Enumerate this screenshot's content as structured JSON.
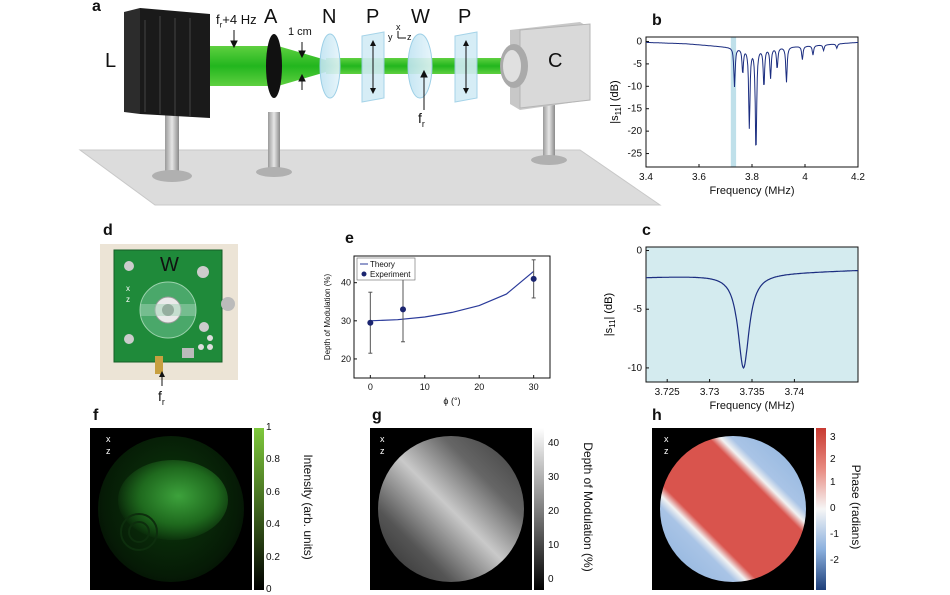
{
  "panels": {
    "a": "a",
    "b": "b",
    "c": "c",
    "d": "d",
    "e": "e",
    "f": "f",
    "g": "g",
    "h": "h"
  },
  "setup": {
    "labels": [
      "L",
      "A",
      "N",
      "P",
      "W",
      "P",
      "C"
    ],
    "freq_offset": "f",
    "freq_offset_sub": "r",
    "freq_offset_suffix": "+4 Hz",
    "beam_size": "1 cm",
    "drive_freq": "f",
    "drive_freq_sub": "r",
    "axis_x": "x",
    "axis_y": "y",
    "axis_z": "z"
  },
  "photo": {
    "label": "W",
    "drive_freq": "f",
    "drive_freq_sub": "r",
    "axis_x": "x",
    "axis_z": "z"
  },
  "maps": {
    "axis_x": "x",
    "axis_z": "z",
    "f_colorbar": {
      "label": "Intensity (arb. units)",
      "ticks": [
        "1",
        "0.8",
        "0.6",
        "0.4",
        "0.2",
        "0"
      ],
      "color": "#6fc030"
    },
    "g_colorbar": {
      "label": "Depth of Modulation (%)",
      "ticks": [
        "40",
        "30",
        "20",
        "10",
        "0"
      ]
    },
    "h_colorbar": {
      "label": "Phase (radians)",
      "ticks": [
        "3",
        "2",
        "1",
        "0",
        "-1",
        "-2"
      ]
    }
  },
  "chart_data": [
    {
      "id": "b",
      "type": "line",
      "xlabel": "Frequency (MHz)",
      "ylabel_main": "|s",
      "ylabel_sub": "11",
      "ylabel_end": "| (dB)",
      "xlim": [
        3.4,
        4.2
      ],
      "ylim": [
        -28,
        1
      ],
      "xticks": [
        "3.4",
        "3.6",
        "3.8",
        "4",
        "4.2"
      ],
      "yticks": [
        "0",
        "-5",
        "-10",
        "-15",
        "-20",
        "-25"
      ],
      "highlight_band": [
        3.72,
        3.74
      ],
      "baseline": [
        [
          3.4,
          -0.2
        ],
        [
          3.55,
          -0.5
        ],
        [
          3.7,
          -1.2
        ],
        [
          3.8,
          -1.5
        ],
        [
          4.0,
          -1.0
        ],
        [
          4.2,
          -0.2
        ]
      ],
      "resonances": [
        {
          "x": 3.734,
          "y": -10
        },
        {
          "x": 3.765,
          "y": -7
        },
        {
          "x": 3.79,
          "y": -19
        },
        {
          "x": 3.815,
          "y": -25
        },
        {
          "x": 3.845,
          "y": -10
        },
        {
          "x": 3.87,
          "y": -8
        },
        {
          "x": 3.895,
          "y": -6
        },
        {
          "x": 3.93,
          "y": -9
        },
        {
          "x": 3.99,
          "y": -4
        },
        {
          "x": 4.03,
          "y": -3
        },
        {
          "x": 4.07,
          "y": -2
        },
        {
          "x": 4.12,
          "y": -1.5
        }
      ]
    },
    {
      "id": "c",
      "type": "line",
      "xlabel": "Frequency (MHz)",
      "ylabel_main": "|s",
      "ylabel_sub": "11",
      "ylabel_end": "| (dB)",
      "xlim": [
        3.7225,
        3.7475
      ],
      "ylim": [
        -11.2,
        0.3
      ],
      "xticks": [
        "3.725",
        "3.73",
        "3.735",
        "3.74"
      ],
      "yticks": [
        "0",
        "-5",
        "-10"
      ],
      "baseline_db": -2,
      "dip": {
        "x": 3.734,
        "y": -10,
        "width": 0.0008
      }
    },
    {
      "id": "e",
      "type": "scatter",
      "xlabel": "ϕ (°)",
      "ylabel": "Depth of Modulation (%)",
      "xlim": [
        -3,
        33
      ],
      "ylim": [
        15,
        47
      ],
      "xticks": [
        "0",
        "10",
        "20",
        "30"
      ],
      "yticks": [
        "20",
        "30",
        "40"
      ],
      "legend": [
        "Theory",
        "Experiment"
      ],
      "experiment": [
        {
          "x": 0,
          "y": 29.5,
          "err": 8
        },
        {
          "x": 6,
          "y": 33,
          "err": 8.5
        },
        {
          "x": 30,
          "y": 41,
          "err": 5
        }
      ],
      "theory": [
        [
          0,
          30
        ],
        [
          5,
          30.3
        ],
        [
          10,
          31
        ],
        [
          15,
          32.2
        ],
        [
          20,
          34
        ],
        [
          25,
          37
        ],
        [
          30,
          43
        ]
      ]
    }
  ]
}
